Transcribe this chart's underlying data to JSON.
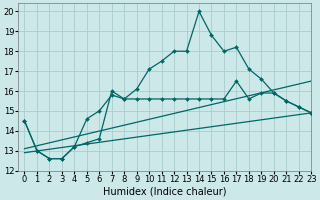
{
  "title": "",
  "xlabel": "Humidex (Indice chaleur)",
  "background_color": "#cce8e8",
  "grid_color": "#aacccc",
  "line_color": "#006666",
  "xlim": [
    -0.5,
    23
  ],
  "ylim": [
    12,
    20.4
  ],
  "yticks": [
    12,
    13,
    14,
    15,
    16,
    17,
    18,
    19,
    20
  ],
  "xticks": [
    0,
    1,
    2,
    3,
    4,
    5,
    6,
    7,
    8,
    9,
    10,
    11,
    12,
    13,
    14,
    15,
    16,
    17,
    18,
    19,
    20,
    21,
    22,
    23
  ],
  "series1_x": [
    0,
    1,
    2,
    3,
    4,
    5,
    6,
    7,
    8,
    9,
    10,
    11,
    12,
    13,
    14,
    15,
    16,
    17,
    18,
    19,
    20,
    21,
    22,
    23
  ],
  "series1_y": [
    14.5,
    13.0,
    12.6,
    12.6,
    13.2,
    14.6,
    15.0,
    15.8,
    15.6,
    16.1,
    17.1,
    17.5,
    18.0,
    18.0,
    20.0,
    18.8,
    18.0,
    18.2,
    17.1,
    16.6,
    15.9,
    15.5,
    15.2,
    14.9
  ],
  "series2_x": [
    0,
    1,
    2,
    3,
    4,
    5,
    6,
    7,
    8,
    9,
    10,
    11,
    12,
    13,
    14,
    15,
    16,
    17,
    18,
    19,
    20,
    21,
    22,
    23
  ],
  "series2_y": [
    14.5,
    13.0,
    12.6,
    12.6,
    13.2,
    13.4,
    13.6,
    16.0,
    15.6,
    15.6,
    15.6,
    15.6,
    15.6,
    15.6,
    15.6,
    15.6,
    15.6,
    16.5,
    15.6,
    15.9,
    15.9,
    15.5,
    15.2,
    14.9
  ],
  "trend1_x": [
    0,
    23
  ],
  "trend1_y": [
    12.9,
    14.9
  ],
  "trend2_x": [
    0,
    23
  ],
  "trend2_y": [
    13.1,
    16.5
  ],
  "fontsize_label": 7,
  "fontsize_tick": 6,
  "marker_size": 2.0,
  "linewidth": 0.9
}
